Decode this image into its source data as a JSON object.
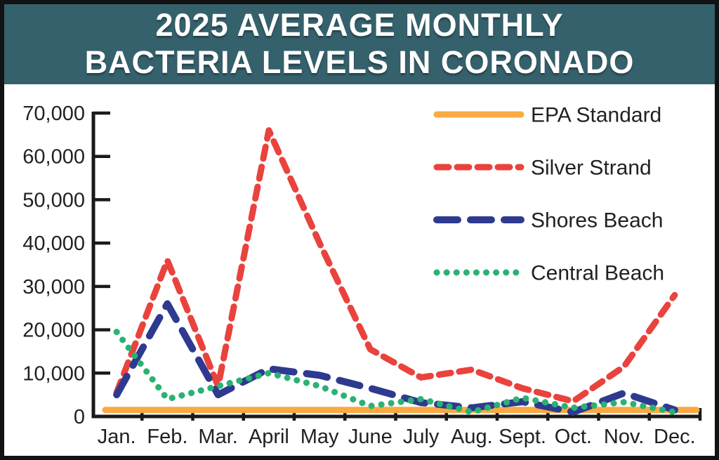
{
  "header": {
    "title_line1": "2025 AVERAGE MONTHLY",
    "title_line2": "BACTERIA LEVELS IN CORONADO"
  },
  "colors": {
    "banner_bg": "#35616C",
    "banner_text": "#FFFFFF",
    "axis": "#1A1A1A",
    "label_text": "#231F20",
    "plot_bg": "#FFFFFF",
    "epa_standard": "#F9AA42",
    "silver_strand": "#EA423D",
    "shores_beach": "#2E3A8F",
    "central_beach": "#2BB273"
  },
  "chart_data": {
    "type": "line",
    "title": "2025 Average Monthly Bacteria Levels in Coronado",
    "categories": [
      "Jan.",
      "Feb.",
      "Mar.",
      "April",
      "May",
      "June",
      "July",
      "Aug.",
      "Sept.",
      "Oct.",
      "Nov.",
      "Dec."
    ],
    "xlabel": "",
    "ylabel": "",
    "ylim": [
      0,
      70000
    ],
    "ytick_step": 10000,
    "ytick_labels": [
      "0",
      "10,000",
      "20,000",
      "30,000",
      "40,000",
      "50,000",
      "60,000",
      "70,000"
    ],
    "grid": false,
    "legend_position": "top-right",
    "series": [
      {
        "name": "EPA Standard",
        "color": "#F9AA42",
        "line_style": "solid",
        "extend_full_width": true,
        "values": [
          1500,
          1500,
          1500,
          1500,
          1500,
          1500,
          1500,
          1500,
          1500,
          1500,
          1500,
          1500
        ]
      },
      {
        "name": "Silver Strand",
        "color": "#EA423D",
        "line_style": "dashed",
        "values": [
          5500,
          36000,
          7000,
          66000,
          40000,
          15500,
          9000,
          10800,
          6500,
          3500,
          11500,
          28000
        ]
      },
      {
        "name": "Shores Beach",
        "color": "#2E3A8F",
        "line_style": "long-dash",
        "values": [
          5000,
          26000,
          5000,
          11000,
          9500,
          6500,
          3200,
          2000,
          3400,
          1000,
          5400,
          1500
        ]
      },
      {
        "name": "Central Beach",
        "color": "#2BB273",
        "line_style": "dotted",
        "values": [
          19500,
          4000,
          7000,
          10000,
          7000,
          2400,
          4000,
          1000,
          4300,
          2000,
          3300,
          1000
        ]
      }
    ]
  }
}
